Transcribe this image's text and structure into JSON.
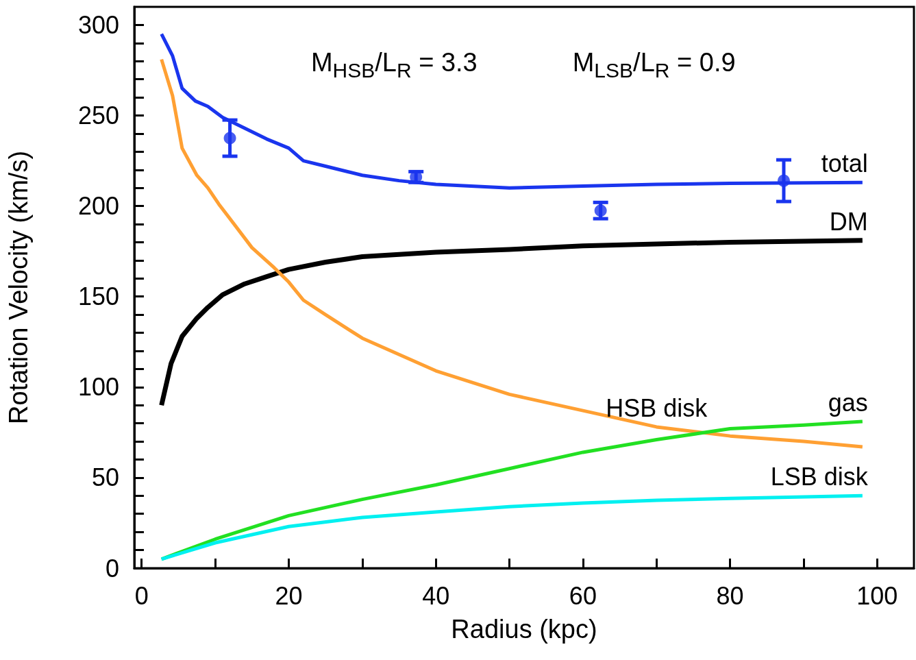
{
  "chart_data": {
    "type": "line",
    "xlabel": "Radius (kpc)",
    "ylabel": "Rotation Velocity (km/s)",
    "xlim": [
      -1,
      105
    ],
    "ylim": [
      0,
      310
    ],
    "xticks": [
      0,
      {
        "value": 10,
        "label": null
      },
      20,
      {
        "value": 30,
        "label": null
      },
      40,
      {
        "value": 50,
        "label": null
      },
      60,
      {
        "value": 70,
        "label": null
      },
      80,
      {
        "value": 90,
        "label": null
      },
      100
    ],
    "yticks": [
      0,
      {
        "value": 10,
        "label": null
      },
      {
        "value": 20,
        "label": null
      },
      {
        "value": 30,
        "label": null
      },
      {
        "value": 40,
        "label": null
      },
      50,
      {
        "value": 60,
        "label": null
      },
      {
        "value": 70,
        "label": null
      },
      {
        "value": 80,
        "label": null
      },
      {
        "value": 90,
        "label": null
      },
      100,
      {
        "value": 110,
        "label": null
      },
      {
        "value": 120,
        "label": null
      },
      {
        "value": 130,
        "label": null
      },
      {
        "value": 140,
        "label": null
      },
      150,
      {
        "value": 160,
        "label": null
      },
      {
        "value": 170,
        "label": null
      },
      {
        "value": 180,
        "label": null
      },
      {
        "value": 190,
        "label": null
      },
      200,
      {
        "value": 210,
        "label": null
      },
      {
        "value": 220,
        "label": null
      },
      {
        "value": 230,
        "label": null
      },
      {
        "value": 240,
        "label": null
      },
      250,
      {
        "value": 260,
        "label": null
      },
      {
        "value": 270,
        "label": null
      },
      {
        "value": 280,
        "label": null
      },
      {
        "value": 290,
        "label": null
      },
      300
    ],
    "grid": false,
    "marker": "none",
    "series": [
      {
        "name": "total",
        "color": "#1a35ee",
        "x": [
          2.7,
          4.2,
          5.5,
          7.3,
          9,
          11,
          14,
          17,
          20,
          22,
          25,
          30,
          35,
          40,
          50,
          60,
          70,
          80,
          98
        ],
        "values": [
          295,
          283,
          265,
          258,
          255,
          249,
          243,
          237,
          232,
          225,
          222,
          217,
          214,
          212,
          210,
          211,
          212,
          212.5,
          213
        ]
      },
      {
        "name": "DM",
        "color": "#000000",
        "x": [
          2.7,
          4,
          5.5,
          7.5,
          9,
          11,
          14,
          17,
          20,
          25,
          30,
          40,
          50,
          60,
          70,
          80,
          98
        ],
        "values": [
          90,
          113,
          128,
          138,
          144,
          151,
          157,
          161,
          165,
          169,
          172,
          174.5,
          176,
          178,
          179,
          180,
          181
        ]
      },
      {
        "name": "HSB disk",
        "color": "#ffa033",
        "x": [
          2.7,
          4.2,
          5.5,
          7.5,
          9,
          10.5,
          12,
          15,
          18,
          20,
          22,
          25,
          30,
          35,
          40,
          50,
          60,
          70,
          80,
          90,
          98
        ],
        "values": [
          281,
          261,
          232,
          217,
          210,
          201,
          193,
          177,
          166,
          158,
          148,
          140,
          127,
          118,
          109,
          96,
          87,
          78,
          73,
          70,
          67
        ]
      },
      {
        "name": "gas",
        "color": "#22e022",
        "x": [
          2.7,
          10,
          20,
          30,
          40,
          50,
          60,
          70,
          80,
          90,
          98
        ],
        "values": [
          5,
          16,
          29,
          38,
          46,
          55,
          64,
          71,
          77,
          79,
          81
        ]
      },
      {
        "name": "LSB disk",
        "color": "#00f0f0",
        "x": [
          2.7,
          10,
          20,
          30,
          40,
          50,
          60,
          70,
          80,
          98
        ],
        "values": [
          5,
          14,
          23,
          28,
          31,
          34,
          36,
          37.5,
          38.5,
          40
        ]
      },
      {
        "type": "scatter",
        "marker": "circle",
        "color": "#1a35ee",
        "x": [
          12,
          37.3,
          62.4,
          87.3
        ],
        "values": [
          237.5,
          216,
          197.5,
          214
        ],
        "errors": [
          10,
          3,
          4.5,
          11.5
        ]
      }
    ],
    "annotations": [
      "M$_{HSB}$/L$_{R}$ = 3.3",
      "M$_{LSB}$/L$_{R}$ = 0.9"
    ]
  }
}
